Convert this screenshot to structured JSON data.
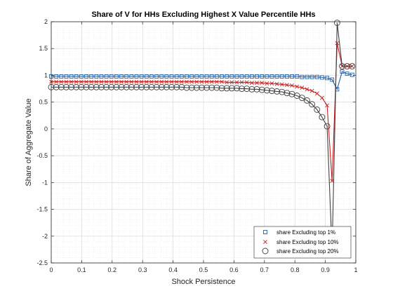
{
  "chart_data": {
    "type": "line",
    "title": "Share of V for HHs Excluding Highest X Value Percentile HHs",
    "xlabel": "Shock Persistence",
    "ylabel": "Share of Aggregate Value",
    "xlim": [
      0,
      1
    ],
    "ylim": [
      -2.5,
      2
    ],
    "xticks": [
      0,
      0.1,
      0.2,
      0.3,
      0.4,
      0.5,
      0.6,
      0.7,
      0.8,
      0.9,
      1
    ],
    "xtick_labels": [
      "0",
      "0.1",
      "0.2",
      "0.3",
      "0.4",
      "0.5",
      "0.6",
      "0.7",
      "0.8",
      "0.9",
      "1"
    ],
    "yticks": [
      -2.5,
      -2,
      -1.5,
      -1,
      -0.5,
      0,
      0.5,
      1,
      1.5,
      2
    ],
    "ytick_labels": [
      "-2.5",
      "-2",
      "-1.5",
      "-1",
      "-0.5",
      "0",
      "0.5",
      "1",
      "1.5",
      "2"
    ],
    "grid": "on (major and minor, dotted)",
    "legend_position": "bottom-right",
    "x": [
      0,
      0.0165,
      0.0329,
      0.0494,
      0.0659,
      0.0823,
      0.0988,
      0.1153,
      0.1317,
      0.1482,
      0.1647,
      0.1811,
      0.1976,
      0.2141,
      0.2305,
      0.247,
      0.2635,
      0.2799,
      0.2964,
      0.3129,
      0.3293,
      0.3458,
      0.3623,
      0.3787,
      0.3952,
      0.4117,
      0.4281,
      0.4446,
      0.4611,
      0.4775,
      0.494,
      0.5105,
      0.5269,
      0.5434,
      0.5599,
      0.5763,
      0.5928,
      0.6093,
      0.6257,
      0.6422,
      0.6587,
      0.6751,
      0.6916,
      0.7081,
      0.7245,
      0.741,
      0.7575,
      0.7739,
      0.7904,
      0.8069,
      0.8233,
      0.8398,
      0.8563,
      0.8727,
      0.8892,
      0.9057,
      0.9221,
      0.9386,
      0.9551,
      0.9715,
      0.988
    ],
    "series": [
      {
        "name": "share Excluding top 1%",
        "color": "#1f5fa8",
        "marker": "square",
        "values": [
          0.98,
          0.98,
          0.98,
          0.98,
          0.98,
          0.98,
          0.98,
          0.98,
          0.98,
          0.98,
          0.98,
          0.98,
          0.98,
          0.98,
          0.98,
          0.98,
          0.98,
          0.98,
          0.98,
          0.98,
          0.98,
          0.98,
          0.98,
          0.98,
          0.98,
          0.98,
          0.98,
          0.98,
          0.98,
          0.98,
          0.98,
          0.98,
          0.98,
          0.98,
          0.98,
          0.98,
          0.98,
          0.98,
          0.98,
          0.98,
          0.98,
          0.98,
          0.98,
          0.98,
          0.98,
          0.98,
          0.98,
          0.98,
          0.98,
          0.98,
          0.97,
          0.97,
          0.97,
          0.97,
          0.96,
          0.95,
          0.92,
          0.74,
          1.07,
          1.03,
          1.01
        ]
      },
      {
        "name": "share Excluding top 10%",
        "color": "#c81e1e",
        "marker": "x",
        "values": [
          0.88,
          0.88,
          0.88,
          0.88,
          0.88,
          0.88,
          0.88,
          0.88,
          0.88,
          0.88,
          0.88,
          0.88,
          0.88,
          0.88,
          0.88,
          0.88,
          0.88,
          0.88,
          0.88,
          0.88,
          0.88,
          0.88,
          0.88,
          0.88,
          0.88,
          0.88,
          0.88,
          0.88,
          0.88,
          0.88,
          0.88,
          0.88,
          0.88,
          0.88,
          0.88,
          0.87,
          0.87,
          0.87,
          0.87,
          0.87,
          0.86,
          0.86,
          0.86,
          0.85,
          0.85,
          0.84,
          0.83,
          0.82,
          0.81,
          0.79,
          0.77,
          0.74,
          0.71,
          0.66,
          0.58,
          0.44,
          -0.97,
          1.6,
          1.17,
          1.17,
          1.17
        ]
      },
      {
        "name": "share Excluding top 20%",
        "color": "#404040",
        "marker": "circle",
        "values": [
          0.78,
          0.78,
          0.78,
          0.78,
          0.78,
          0.78,
          0.78,
          0.78,
          0.78,
          0.78,
          0.78,
          0.78,
          0.78,
          0.78,
          0.78,
          0.78,
          0.78,
          0.78,
          0.78,
          0.78,
          0.78,
          0.78,
          0.78,
          0.78,
          0.78,
          0.78,
          0.78,
          0.77,
          0.77,
          0.77,
          0.77,
          0.77,
          0.77,
          0.77,
          0.76,
          0.76,
          0.76,
          0.76,
          0.75,
          0.75,
          0.74,
          0.74,
          0.73,
          0.72,
          0.71,
          0.7,
          0.69,
          0.67,
          0.65,
          0.62,
          0.58,
          0.53,
          0.46,
          0.36,
          0.22,
          0.05,
          -2.28,
          1.98,
          1.17,
          1.17,
          1.17
        ]
      }
    ]
  }
}
